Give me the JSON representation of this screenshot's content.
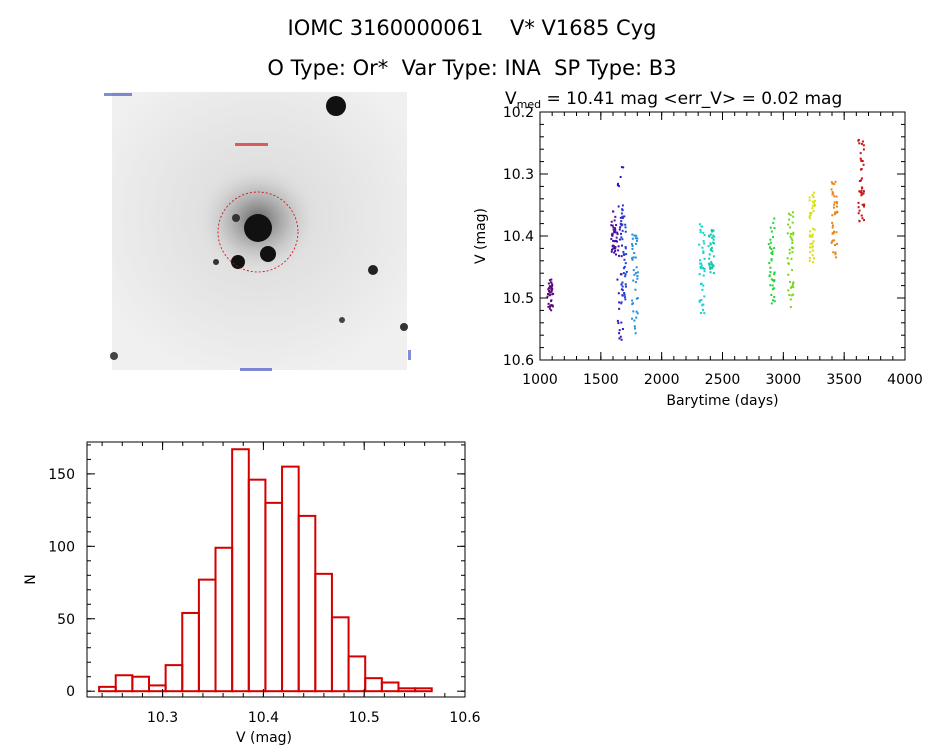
{
  "header": {
    "line1": "IOMC 3160000061    V* V1685 Cyg",
    "line2": "O Type: Or*  Var Type: INA  SP Type: B3"
  },
  "image_panel": {
    "description_icon": "star-field-image",
    "marker_color": "#d40000"
  },
  "chart_data": [
    {
      "type": "scatter",
      "title_main": "V",
      "title_sub": "med",
      "title_rest": " = 10.41 mag <err_V> = 0.02 mag",
      "xlabel": "Barytime (days)",
      "ylabel": "V (mag)",
      "xlim": [
        1000,
        4000
      ],
      "ylim": [
        10.6,
        10.2
      ],
      "xticks": [
        "1000",
        "1500",
        "2000",
        "2500",
        "3000",
        "3500",
        "4000"
      ],
      "yticks": [
        "10.2",
        "10.3",
        "10.4",
        "10.5",
        "10.6"
      ],
      "series": [
        {
          "color": "#5a0a78",
          "x": 1085,
          "ymin": 10.47,
          "ymax": 10.52
        },
        {
          "color": "#4b10a0",
          "x": 1610,
          "ymin": 10.36,
          "ymax": 10.43
        },
        {
          "color": "#3a14c0",
          "x": 1660,
          "ymin": 10.28,
          "ymax": 10.57
        },
        {
          "color": "#2040d8",
          "x": 1690,
          "ymin": 10.35,
          "ymax": 10.51
        },
        {
          "color": "#1f8fe0",
          "x": 1780,
          "ymin": 10.39,
          "ymax": 10.56
        },
        {
          "color": "#12d2d2",
          "x": 2330,
          "ymin": 10.38,
          "ymax": 10.53
        },
        {
          "color": "#14c8b4",
          "x": 2410,
          "ymin": 10.39,
          "ymax": 10.46
        },
        {
          "color": "#22d43a",
          "x": 2905,
          "ymin": 10.37,
          "ymax": 10.51
        },
        {
          "color": "#7ad41e",
          "x": 3060,
          "ymin": 10.36,
          "ymax": 10.52
        },
        {
          "color": "#d8de14",
          "x": 3240,
          "ymin": 10.33,
          "ymax": 10.45
        },
        {
          "color": "#e8841a",
          "x": 3420,
          "ymin": 10.31,
          "ymax": 10.44
        },
        {
          "color": "#c81414",
          "x": 3640,
          "ymin": 10.24,
          "ymax": 10.38
        }
      ]
    },
    {
      "type": "bar",
      "xlabel": "V (mag)",
      "ylabel": "N",
      "xlim": [
        10.225,
        10.6
      ],
      "ylim": [
        -4,
        172
      ],
      "xticks": [
        "10.3",
        "10.4",
        "10.5",
        "10.6"
      ],
      "yticks": [
        "0",
        "50",
        "100",
        "150"
      ],
      "bin_width": 0.0165,
      "bin_edges_start": 10.237,
      "values": [
        3,
        11,
        10,
        4,
        18,
        54,
        77,
        99,
        167,
        146,
        130,
        155,
        121,
        81,
        51,
        24,
        9,
        6,
        2,
        2
      ],
      "color": "#d40000"
    }
  ]
}
